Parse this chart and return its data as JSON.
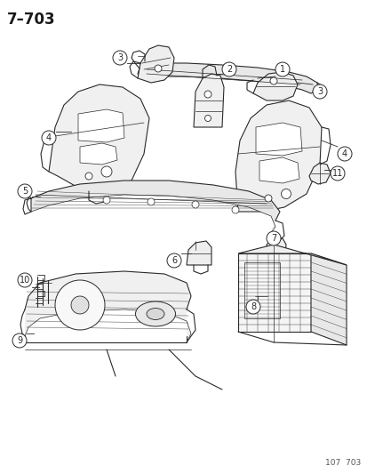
{
  "title": "7–703",
  "footer": "107  703",
  "bg_color": "#ffffff",
  "line_color": "#2a2a2a",
  "label_color": "#1a1a1a",
  "title_fontsize": 12,
  "footer_fontsize": 6.5,
  "label_fontsize": 7.5
}
